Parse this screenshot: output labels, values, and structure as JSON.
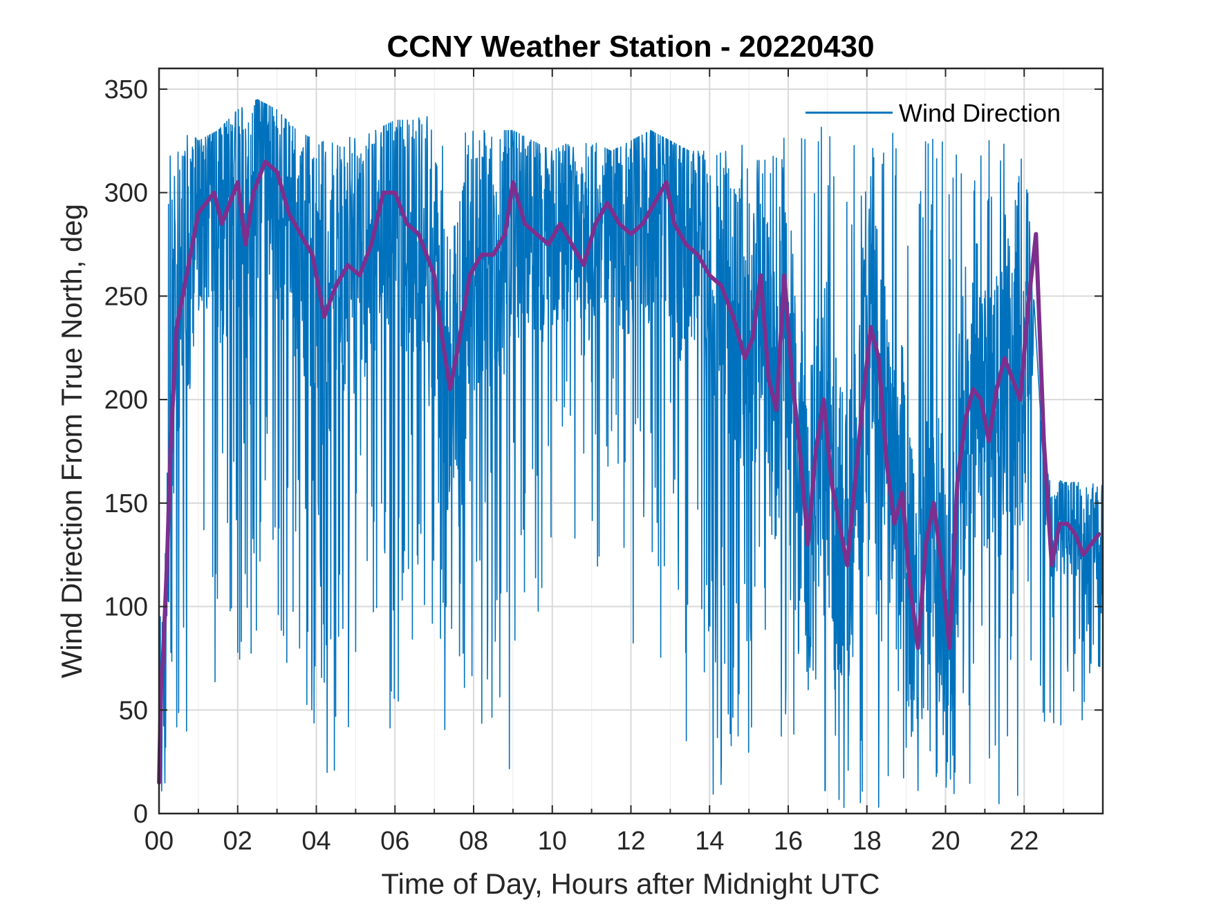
{
  "chart_data": {
    "type": "line",
    "title": "CCNY Weather Station - 20220430",
    "xlabel": "Time of Day, Hours after Midnight UTC",
    "ylabel": "Wind Direction From True North, deg",
    "xlim": [
      0,
      24
    ],
    "ylim": [
      0,
      360
    ],
    "grid": true,
    "legend_position": "top-right",
    "xticks": [
      0,
      2,
      4,
      6,
      8,
      10,
      12,
      14,
      16,
      18,
      20,
      22
    ],
    "xtick_labels": [
      "00",
      "02",
      "04",
      "06",
      "08",
      "10",
      "12",
      "14",
      "16",
      "18",
      "20",
      "22"
    ],
    "yticks": [
      0,
      50,
      100,
      150,
      200,
      250,
      300,
      350
    ],
    "ytick_labels": [
      "0",
      "50",
      "100",
      "150",
      "200",
      "250",
      "300",
      "350"
    ],
    "series": [
      {
        "name": "Wind Direction",
        "color": "#0072BD",
        "style": "raw",
        "envelope": {
          "hours": [
            0,
            0.5,
            1,
            1.5,
            2,
            2.5,
            3,
            3.5,
            4,
            4.5,
            5,
            5.5,
            6,
            6.5,
            7,
            7.5,
            8,
            8.5,
            9,
            9.5,
            10,
            10.5,
            11,
            11.5,
            12,
            12.5,
            13,
            13.5,
            14,
            14.5,
            15,
            15.5,
            16,
            16.5,
            17,
            17.5,
            18,
            18.5,
            19,
            19.5,
            20,
            20.5,
            21,
            21.5,
            22,
            22.5,
            23,
            23.5,
            24
          ],
          "high": [
            345,
            335,
            325,
            330,
            340,
            345,
            340,
            330,
            325,
            325,
            330,
            330,
            335,
            335,
            340,
            335,
            330,
            330,
            330,
            325,
            320,
            325,
            325,
            320,
            325,
            330,
            325,
            320,
            320,
            320,
            325,
            330,
            335,
            335,
            335,
            330,
            330,
            330,
            330,
            330,
            330,
            330,
            330,
            330,
            330,
            165,
            160,
            160,
            160
          ],
          "low": [
            0,
            20,
            30,
            40,
            60,
            80,
            60,
            40,
            10,
            10,
            60,
            70,
            20,
            60,
            10,
            20,
            40,
            40,
            10,
            60,
            100,
            120,
            120,
            110,
            80,
            90,
            60,
            20,
            0,
            20,
            10,
            10,
            0,
            0,
            0,
            0,
            0,
            0,
            0,
            0,
            0,
            0,
            0,
            0,
            5,
            35,
            40,
            45,
            70
          ]
        }
      },
      {
        "name": "",
        "color": "#7E2F8E",
        "style": "running-mean",
        "hours": [
          0,
          0.05,
          0.1,
          0.2,
          0.3,
          0.45,
          0.6,
          0.8,
          1.0,
          1.2,
          1.4,
          1.6,
          1.8,
          2.0,
          2.2,
          2.4,
          2.7,
          3.0,
          3.3,
          3.6,
          3.9,
          4.2,
          4.5,
          4.8,
          5.1,
          5.4,
          5.7,
          6.0,
          6.3,
          6.6,
          6.8,
          7.0,
          7.2,
          7.4,
          7.6,
          7.9,
          8.2,
          8.5,
          8.8,
          9.0,
          9.3,
          9.6,
          9.9,
          10.2,
          10.5,
          10.8,
          11.1,
          11.4,
          11.7,
          12.0,
          12.3,
          12.6,
          12.9,
          13.1,
          13.4,
          13.7,
          14.0,
          14.3,
          14.6,
          14.9,
          15.1,
          15.3,
          15.5,
          15.7,
          15.9,
          16.1,
          16.3,
          16.5,
          16.7,
          16.9,
          17.1,
          17.3,
          17.5,
          17.7,
          17.9,
          18.1,
          18.3,
          18.5,
          18.7,
          18.9,
          19.1,
          19.3,
          19.5,
          19.7,
          19.9,
          20.1,
          20.3,
          20.5,
          20.7,
          20.9,
          21.1,
          21.3,
          21.5,
          21.7,
          21.9,
          22.1,
          22.3,
          22.5,
          22.7,
          22.9,
          23.1,
          23.3,
          23.5,
          23.7,
          23.9
        ],
        "values": [
          15,
          60,
          75,
          120,
          180,
          235,
          250,
          270,
          290,
          295,
          300,
          285,
          295,
          305,
          275,
          300,
          315,
          310,
          290,
          280,
          270,
          240,
          255,
          265,
          260,
          275,
          300,
          300,
          285,
          280,
          270,
          260,
          230,
          205,
          225,
          260,
          270,
          270,
          280,
          305,
          285,
          280,
          275,
          285,
          275,
          265,
          285,
          295,
          285,
          280,
          285,
          295,
          305,
          285,
          275,
          270,
          260,
          255,
          240,
          220,
          230,
          260,
          210,
          195,
          260,
          210,
          175,
          130,
          175,
          200,
          160,
          140,
          120,
          160,
          200,
          235,
          220,
          170,
          140,
          155,
          110,
          80,
          130,
          150,
          120,
          80,
          160,
          190,
          205,
          200,
          180,
          205,
          220,
          210,
          200,
          245,
          280,
          180,
          120,
          140,
          140,
          135,
          125,
          130,
          135
        ]
      }
    ]
  }
}
